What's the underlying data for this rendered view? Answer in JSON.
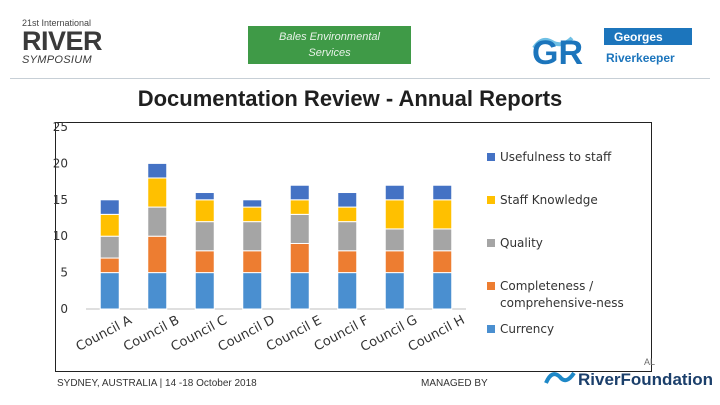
{
  "header": {
    "left_logo": {
      "top": "21st International",
      "main": "RIVER",
      "sub": "SYMPOSIUM"
    },
    "center_badge": {
      "line1": "Bales Environmental",
      "line2": "Services"
    },
    "right_logo": {
      "letters": "GR",
      "line1": "Georges",
      "line2": "Riverkeeper"
    }
  },
  "page_title": "Documentation Review - Annual Reports",
  "chart_data": {
    "type": "bar",
    "stacked": true,
    "title": "",
    "categories": [
      "Council A",
      "Council B",
      "Council C",
      "Council D",
      "Council E",
      "Council F",
      "Council G",
      "Council H"
    ],
    "series": [
      {
        "name": "Currency",
        "values": [
          5,
          5,
          5,
          5,
          5,
          5,
          5,
          5
        ],
        "color": "#4a8fd0"
      },
      {
        "name": "Completeness / comprehensive-ness",
        "values": [
          2,
          5,
          3,
          3,
          4,
          3,
          3,
          3
        ],
        "color": "#ed7d31"
      },
      {
        "name": "Quality",
        "values": [
          3,
          4,
          4,
          4,
          4,
          4,
          3,
          3
        ],
        "color": "#a5a5a5"
      },
      {
        "name": "Staff Knowledge",
        "values": [
          3,
          4,
          3,
          2,
          2,
          2,
          4,
          4
        ],
        "color": "#ffc000"
      },
      {
        "name": "Usefulness to staff",
        "values": [
          2,
          2,
          1,
          1,
          2,
          2,
          2,
          2
        ],
        "color": "#4472c4"
      }
    ],
    "legend_order": [
      "Usefulness to staff",
      "Staff Knowledge",
      "Quality",
      "Completeness / comprehensive-ness",
      "Currency"
    ],
    "y_ticks": [
      "0",
      "5",
      "10",
      "15",
      "20",
      "25"
    ],
    "ylim": [
      0,
      25
    ],
    "legend_position": "right"
  },
  "footer": {
    "left": "SYDNEY, AUSTRALIA | 14 -18 October 2018",
    "mid": "MANAGED BY",
    "logo_small": "AL",
    "logo_main": "RiverFoundation"
  }
}
